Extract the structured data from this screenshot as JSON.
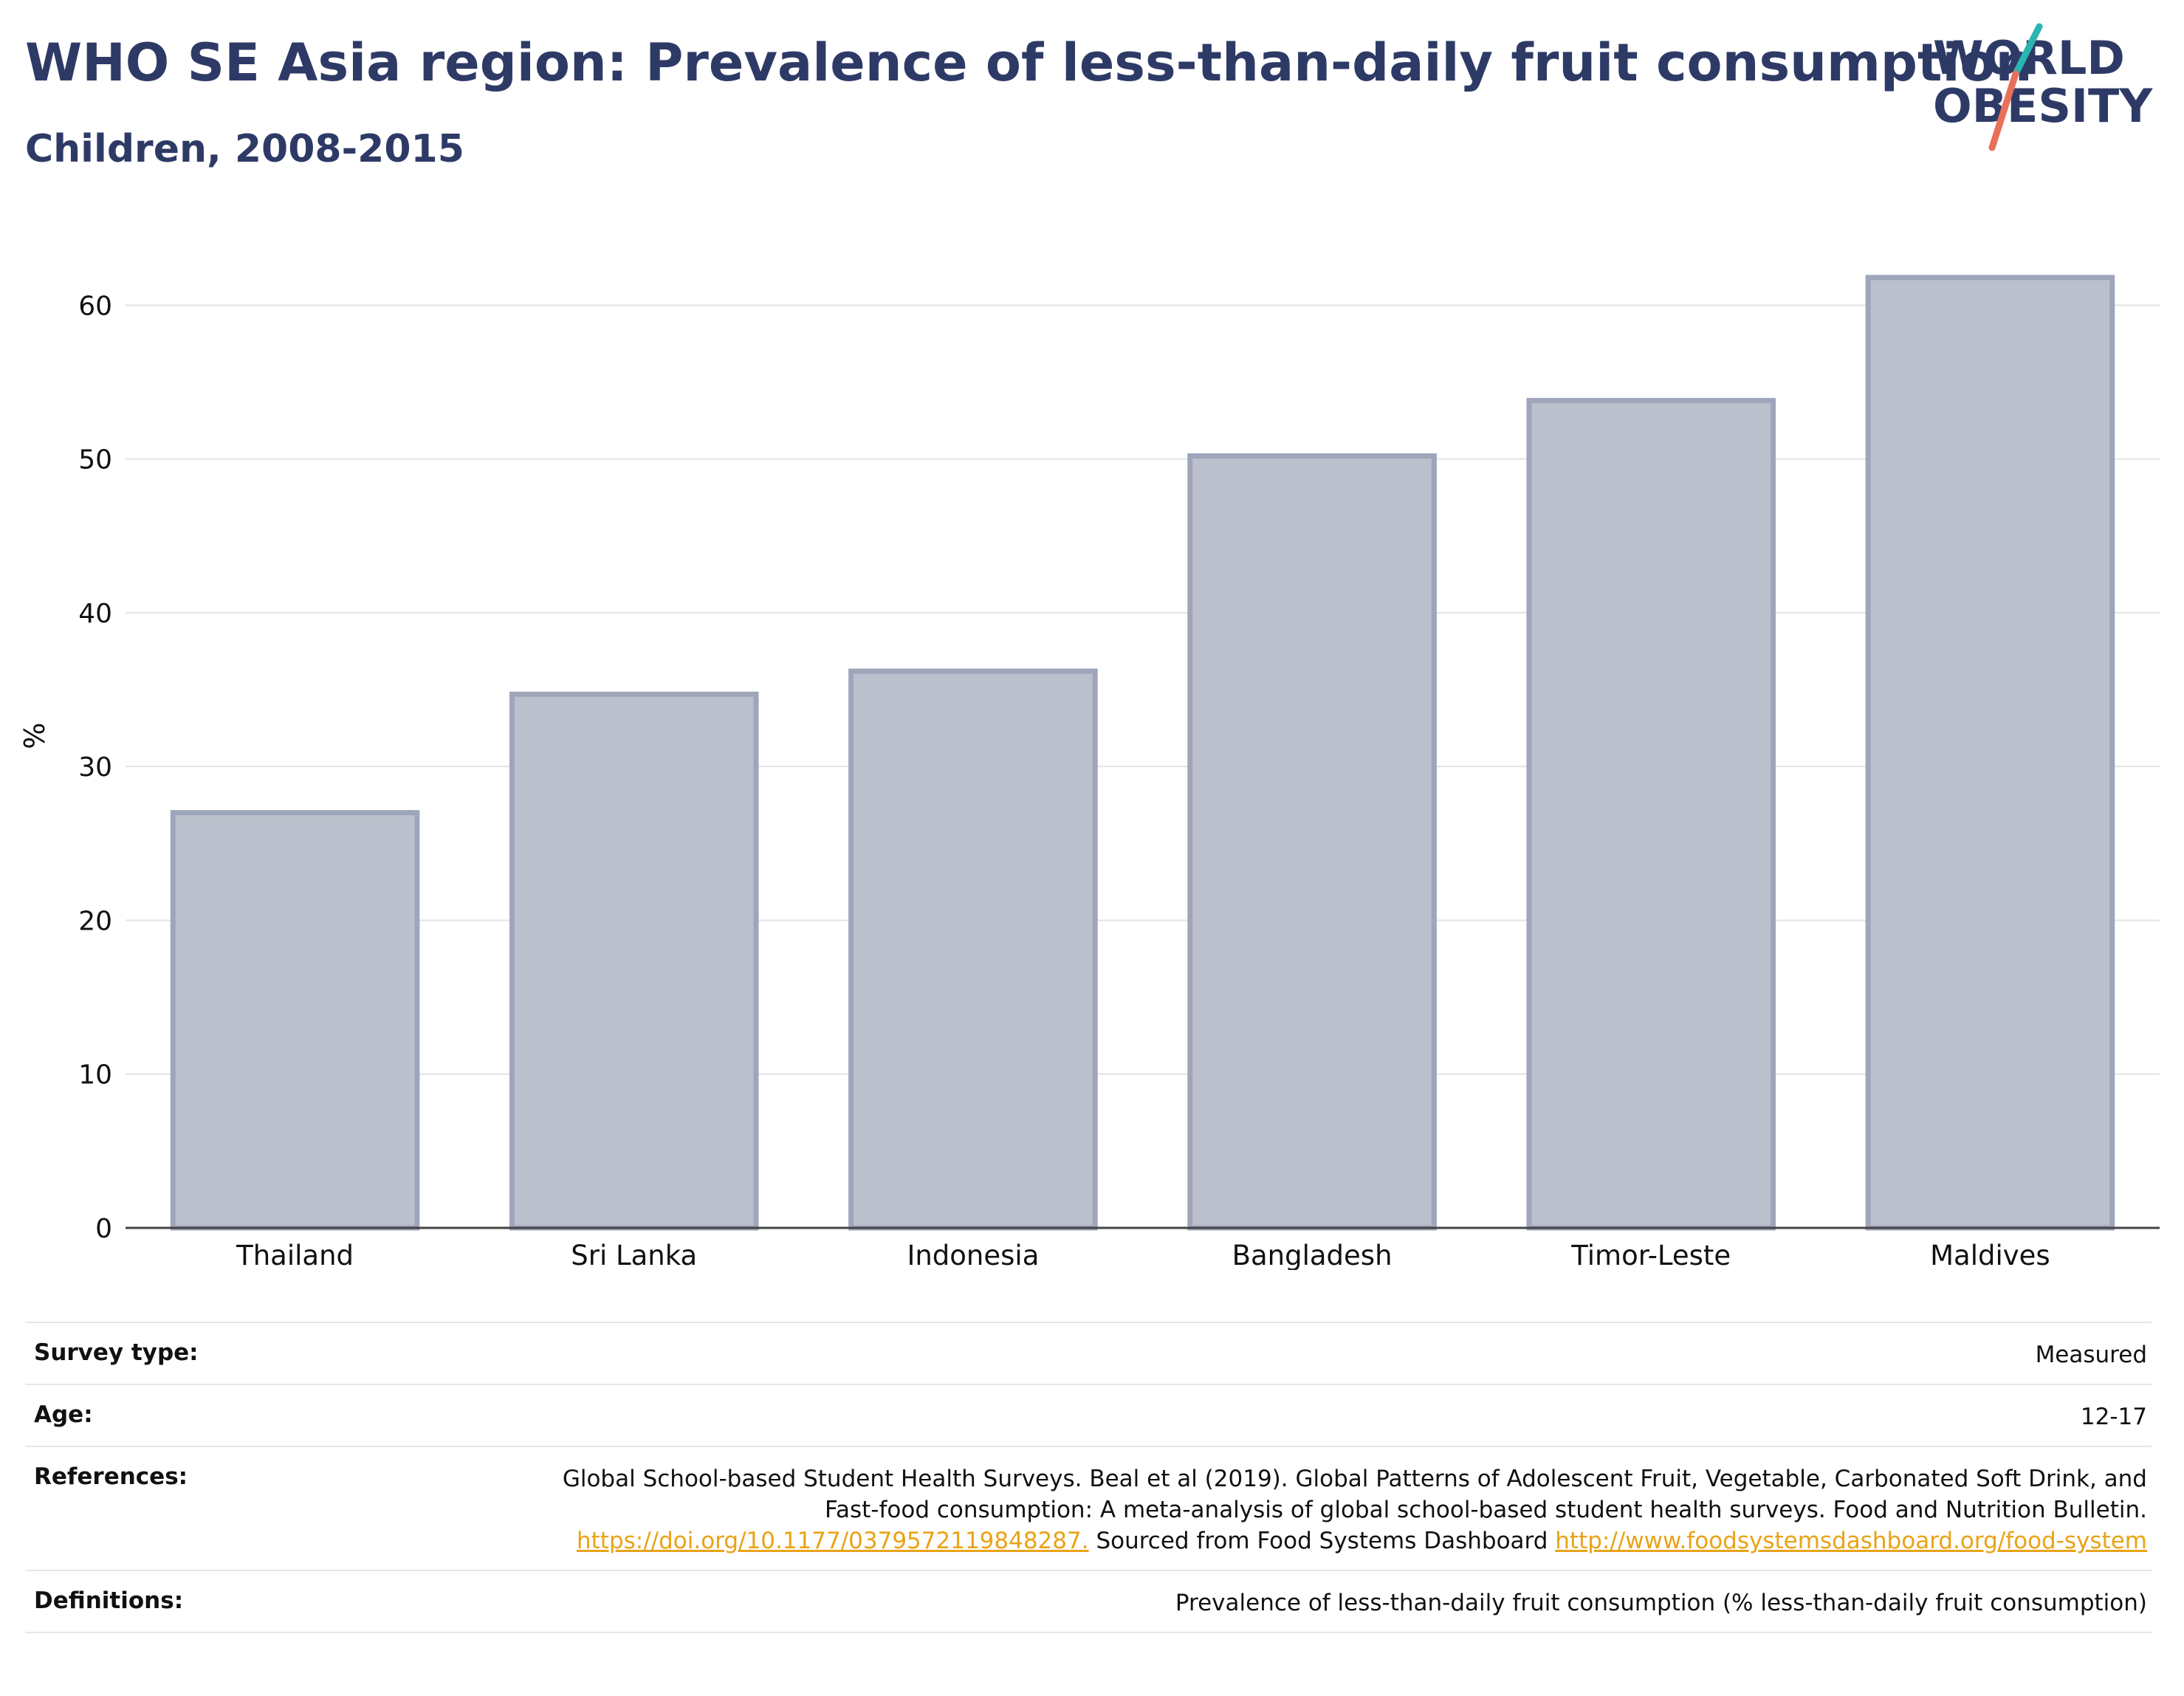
{
  "header": {
    "title": "WHO SE Asia region: Prevalence of less-than-daily fruit consumption",
    "subtitle": "Children, 2008-2015"
  },
  "logo": {
    "line1": "WORLD",
    "line2": "OBESITY",
    "color_text": "#2e3a66",
    "color_slash_teal": "#2bb5b0",
    "color_slash_red": "#e8705a"
  },
  "chart_data": {
    "type": "bar",
    "categories": [
      "Thailand",
      "Sri Lanka",
      "Indonesia",
      "Bangladesh",
      "Timor-Leste",
      "Maldives"
    ],
    "values": [
      27.0,
      34.7,
      36.2,
      50.2,
      53.8,
      61.8
    ],
    "ylabel": "%",
    "xlabel": "",
    "ylim": [
      0,
      64
    ],
    "yticks": [
      0,
      10,
      20,
      30,
      40,
      50,
      60
    ],
    "grid": true,
    "bar_fill": "#bcc0cc",
    "bar_stroke": "#9fa5bb"
  },
  "meta": {
    "rows": [
      {
        "label": "Survey type:",
        "value": "Measured"
      },
      {
        "label": "Age:",
        "value": "12-17"
      },
      {
        "label": "References:",
        "text1": "Global School-based Student Health Surveys. Beal et al (2019). Global Patterns of Adolescent Fruit, Vegetable, Carbonated Soft Drink, and Fast-food consumption: A meta-analysis of global school-based student health surveys. Food and Nutrition Bulletin.",
        "link1": "https://doi.org/10.1177/0379572119848287.",
        "text2": "Sourced from Food Systems Dashboard",
        "link2": "http://www.foodsystemsdashboard.org/food-system"
      },
      {
        "label": "Definitions:",
        "value": "Prevalence of less-than-daily fruit consumption (% less-than-daily fruit consumption)"
      }
    ]
  }
}
